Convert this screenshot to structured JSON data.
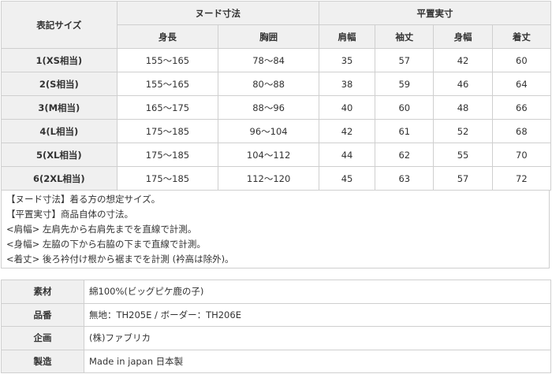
{
  "size_table": {
    "size_header": "表記サイズ",
    "group_nude": "ヌード寸法",
    "group_flat": "平置実寸",
    "columns": [
      "身長",
      "胸囲",
      "肩幅",
      "袖丈",
      "身幅",
      "着丈"
    ],
    "rows": [
      {
        "size": "1(XS相当)",
        "cells": [
          "155～165",
          "78～84",
          "35",
          "57",
          "42",
          "60"
        ]
      },
      {
        "size": "2(S相当)",
        "cells": [
          "155～165",
          "80～88",
          "38",
          "59",
          "46",
          "64"
        ]
      },
      {
        "size": "3(M相当)",
        "cells": [
          "165～175",
          "88～96",
          "40",
          "60",
          "48",
          "66"
        ]
      },
      {
        "size": "4(L相当)",
        "cells": [
          "175～185",
          "96～104",
          "42",
          "61",
          "52",
          "68"
        ]
      },
      {
        "size": "5(XL相当)",
        "cells": [
          "175～185",
          "104～112",
          "44",
          "62",
          "55",
          "70"
        ]
      },
      {
        "size": "6(2XL相当)",
        "cells": [
          "175～185",
          "112～120",
          "45",
          "63",
          "57",
          "72"
        ]
      }
    ]
  },
  "notes": [
    "【ヌード寸法】着る方の想定サイズ。",
    "【平置実寸】商品自体の寸法。",
    "<肩幅> 左肩先から右肩先までを直線で計測。",
    "<身幅> 左脇の下から右脇の下まで直線で計測。",
    "<着丈> 後ろ衿付け根から裾までを計測 (衿高は除外)。"
  ],
  "spec": [
    {
      "label": "素材",
      "value": "綿100%(ビッグピケ鹿の子)"
    },
    {
      "label": "品番",
      "value": "無地：TH205E / ボーダー：TH206E"
    },
    {
      "label": "企画",
      "value": "(株)ファブリカ"
    },
    {
      "label": "製造",
      "value": "Made in japan 日本製"
    }
  ]
}
